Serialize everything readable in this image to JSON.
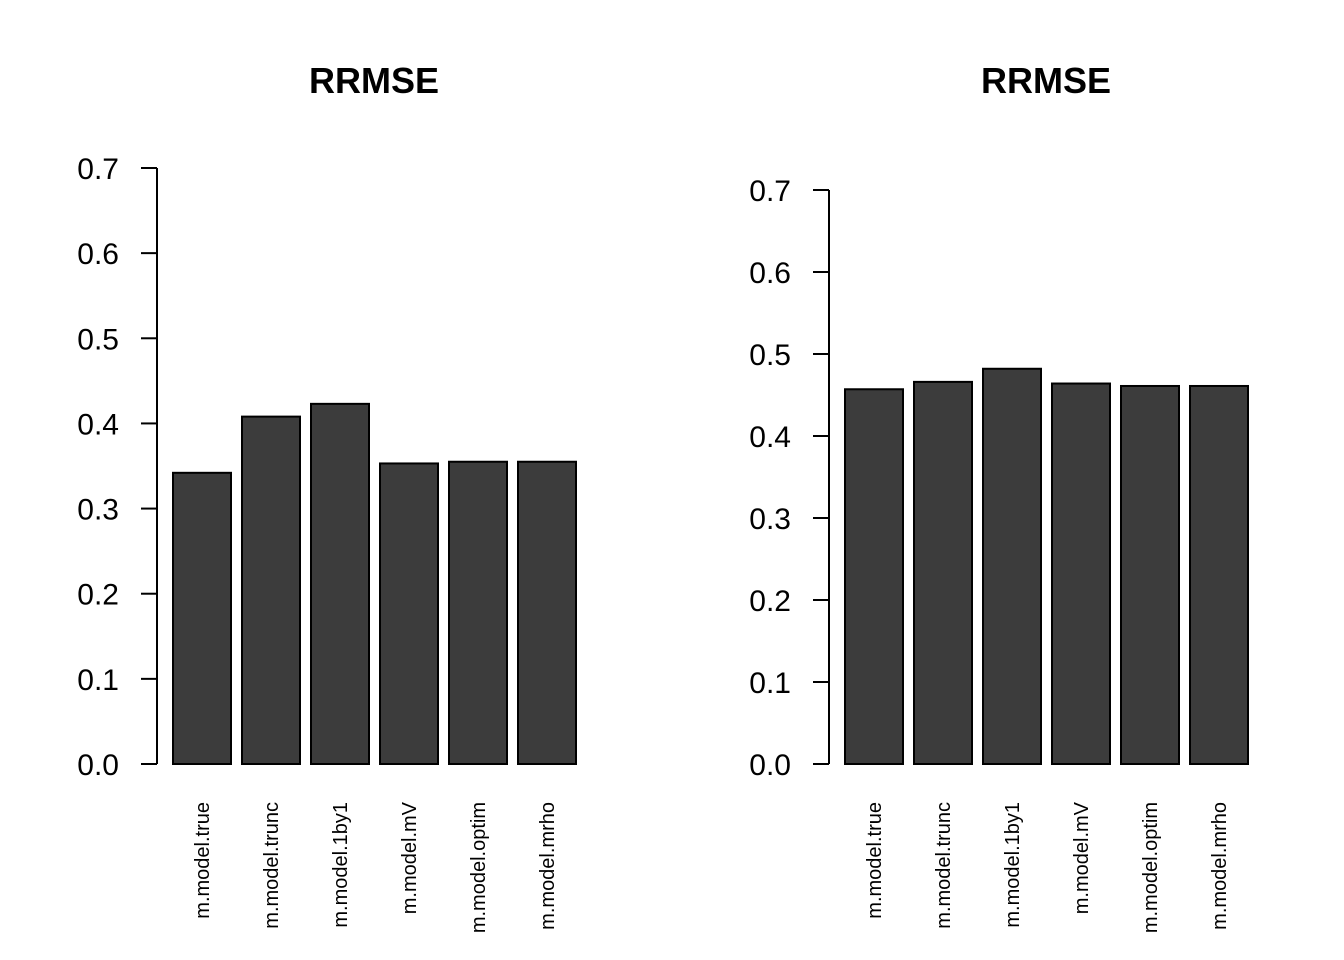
{
  "chart_data": [
    {
      "type": "bar",
      "title": "RRMSE",
      "categories": [
        "m.model.true",
        "m.model.trunc",
        "m.model.1by1",
        "m.model.mV",
        "m.model.optim",
        "m.model.mrho"
      ],
      "values": [
        0.342,
        0.408,
        0.423,
        0.353,
        0.355,
        0.355
      ],
      "ylim": [
        0,
        0.7
      ],
      "yticks": [
        "0.0",
        "0.1",
        "0.2",
        "0.3",
        "0.4",
        "0.5",
        "0.6",
        "0.7"
      ],
      "bar_color": "#3c3c3c",
      "grid": false
    },
    {
      "type": "bar",
      "title": "RRMSE",
      "categories": [
        "m.model.true",
        "m.model.trunc",
        "m.model.1by1",
        "m.model.mV",
        "m.model.optim",
        "m.model.mrho"
      ],
      "values": [
        0.457,
        0.466,
        0.482,
        0.464,
        0.461,
        0.461
      ],
      "ylim": [
        0,
        0.7
      ],
      "yticks": [
        "0.0",
        "0.1",
        "0.2",
        "0.3",
        "0.4",
        "0.5",
        "0.6",
        "0.7"
      ],
      "bar_color": "#3c3c3c",
      "grid": false
    }
  ]
}
